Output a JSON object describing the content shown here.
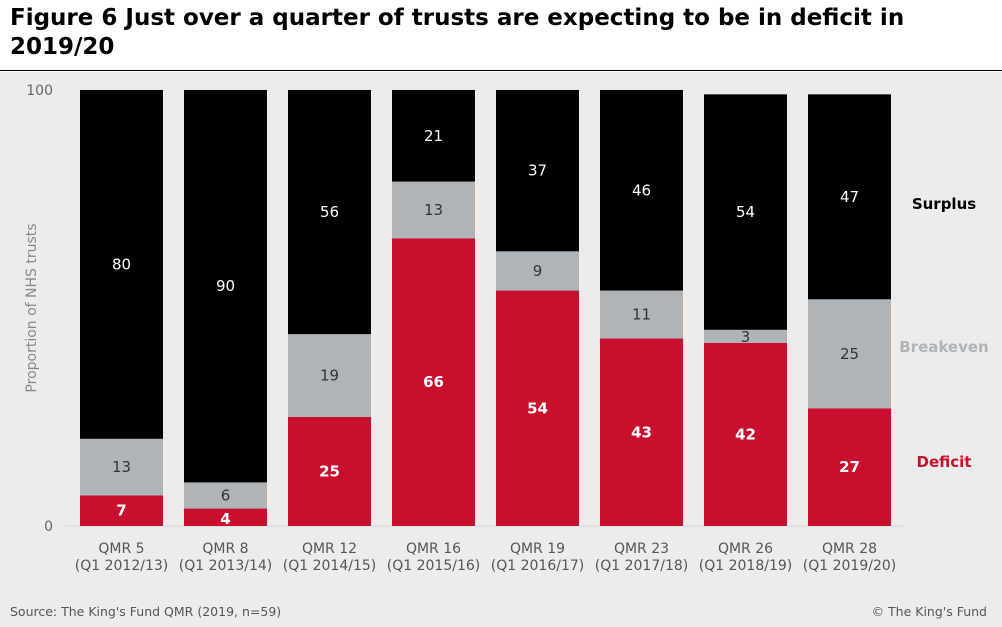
{
  "page": {
    "title": "Figure 6 Just over a quarter of trusts are expecting to be in deficit in 2019/20",
    "source": "Source: The King's Fund QMR (2019, n=59)",
    "copyright": "© The King's Fund"
  },
  "colors": {
    "deficit": "#c8102e",
    "breakeven": "#afb4b8",
    "surplus": "#000000",
    "deficit_label": "#c8102e",
    "breakeven_label": "#afb4b8",
    "surplus_label": "#000000"
  },
  "chart_data": {
    "type": "bar",
    "stacked": true,
    "title": "Figure 6 Just over a quarter of trusts are expecting to be in deficit in 2019/20",
    "ylabel": "Proportion of NHS trusts",
    "xlabel": "",
    "ylim": [
      0,
      100
    ],
    "yticks": [
      "0",
      "100"
    ],
    "categories": [
      [
        "QMR 5",
        "(Q1 2012/13)"
      ],
      [
        "QMR 8",
        "(Q1 2013/14)"
      ],
      [
        "QMR 12",
        "(Q1 2014/15)"
      ],
      [
        "QMR 16",
        "(Q1 2015/16)"
      ],
      [
        "QMR 19",
        "(Q1 2016/17)"
      ],
      [
        "QMR 23",
        "(Q1 2017/18)"
      ],
      [
        "QMR 26",
        "(Q1 2018/19)"
      ],
      [
        "QMR 28",
        "(Q1 2019/20)"
      ]
    ],
    "series": [
      {
        "name": "Deficit",
        "values": [
          7,
          4,
          25,
          66,
          54,
          43,
          42,
          27
        ]
      },
      {
        "name": "Breakeven",
        "values": [
          13,
          6,
          19,
          13,
          9,
          11,
          3,
          25
        ]
      },
      {
        "name": "Surplus",
        "values": [
          80,
          90,
          56,
          21,
          37,
          46,
          54,
          47
        ]
      }
    ],
    "legend": [
      "Surplus",
      "Breakeven",
      "Deficit"
    ],
    "legend_placement": "right",
    "grid": false
  }
}
